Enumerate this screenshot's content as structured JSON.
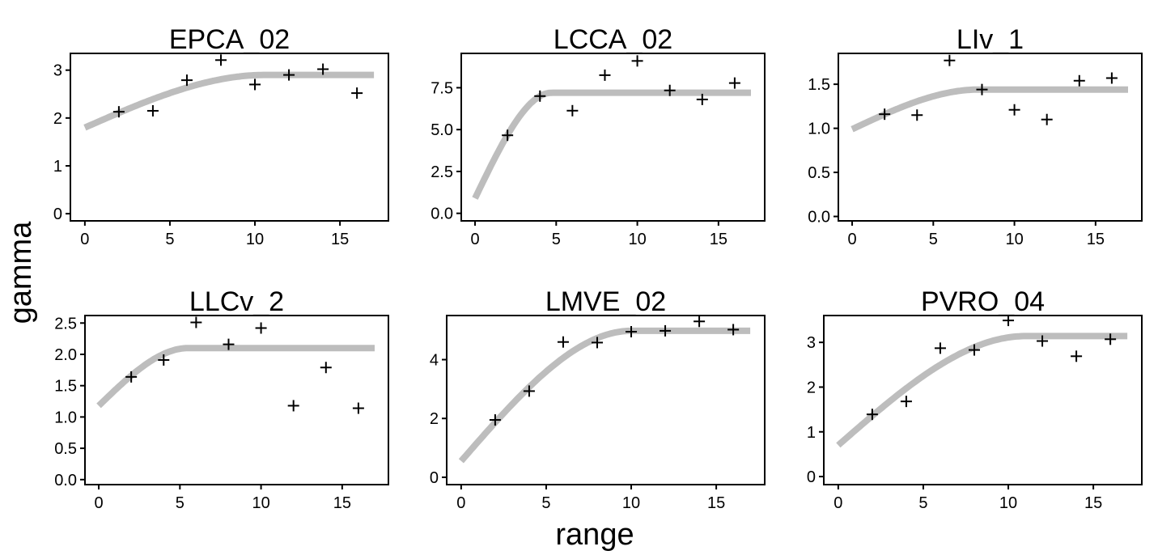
{
  "figure": {
    "xlabel": "range",
    "ylabel": "gamma",
    "colors": {
      "fit_curve": "#bdbdbd",
      "points": "#000000",
      "axes": "#000000",
      "background": "#ffffff"
    }
  },
  "chart_data": [
    {
      "type": "scatter",
      "title": "EPCA_02",
      "xlim": [
        -0.85,
        17.85
      ],
      "ylim": [
        -0.15,
        3.35
      ],
      "x_ticks": [
        0,
        5,
        10,
        15
      ],
      "x_tick_labels": [
        "0",
        "5",
        "10",
        "15"
      ],
      "y_ticks": [
        0,
        1,
        2,
        3
      ],
      "y_tick_labels": [
        "0",
        "1",
        "2",
        "3"
      ],
      "points": {
        "x": [
          2,
          4,
          6,
          8,
          10,
          12,
          14,
          16
        ],
        "y": [
          2.13,
          2.15,
          2.79,
          3.21,
          2.7,
          2.9,
          3.02,
          2.52
        ]
      },
      "fit": {
        "model": "spherical",
        "nugget": 1.8,
        "sill": 2.9,
        "range": 10.6,
        "xmax": 17
      }
    },
    {
      "type": "scatter",
      "title": "LCCA_02",
      "xlim": [
        -0.85,
        17.85
      ],
      "ylim": [
        -0.45,
        9.55
      ],
      "x_ticks": [
        0,
        5,
        10,
        15
      ],
      "x_tick_labels": [
        "0",
        "5",
        "10",
        "15"
      ],
      "y_ticks": [
        0,
        2.5,
        5,
        7.5
      ],
      "y_tick_labels": [
        "0.0",
        "2.5",
        "5.0",
        "7.5"
      ],
      "points": {
        "x": [
          2,
          4,
          6,
          8,
          10,
          12,
          14,
          16
        ],
        "y": [
          4.66,
          7.0,
          6.13,
          8.25,
          9.1,
          7.34,
          6.8,
          7.78
        ]
      },
      "fit": {
        "model": "spherical",
        "nugget": 0.9,
        "sill": 7.2,
        "range": 4.7,
        "xmax": 17
      }
    },
    {
      "type": "scatter",
      "title": "LIv_1",
      "xlim": [
        -0.85,
        17.85
      ],
      "ylim": [
        -0.05,
        1.85
      ],
      "x_ticks": [
        0,
        5,
        10,
        15
      ],
      "x_tick_labels": [
        "0",
        "5",
        "10",
        "15"
      ],
      "y_ticks": [
        0,
        0.5,
        1,
        1.5
      ],
      "y_tick_labels": [
        "0.0",
        "0.5",
        "1.0",
        "1.5"
      ],
      "points": {
        "x": [
          2,
          4,
          6,
          8,
          10,
          12,
          14,
          16
        ],
        "y": [
          1.16,
          1.15,
          1.77,
          1.44,
          1.21,
          1.1,
          1.54,
          1.57
        ]
      },
      "fit": {
        "model": "spherical",
        "nugget": 0.99,
        "sill": 1.44,
        "range": 7.8,
        "xmax": 17
      }
    },
    {
      "type": "scatter",
      "title": "LLCv_2",
      "xlim": [
        -0.85,
        17.85
      ],
      "ylim": [
        -0.08,
        2.62
      ],
      "x_ticks": [
        0,
        5,
        10,
        15
      ],
      "x_tick_labels": [
        "0",
        "5",
        "10",
        "15"
      ],
      "y_ticks": [
        0,
        0.5,
        1,
        1.5,
        2,
        2.5
      ],
      "y_tick_labels": [
        "0.0",
        "0.5",
        "1.0",
        "1.5",
        "2.0",
        "2.5"
      ],
      "points": {
        "x": [
          2,
          4,
          6,
          8,
          10,
          12,
          14,
          16
        ],
        "y": [
          1.64,
          1.91,
          2.51,
          2.16,
          2.42,
          1.18,
          1.79,
          1.14
        ]
      },
      "fit": {
        "model": "spherical",
        "nugget": 1.18,
        "sill": 2.1,
        "range": 5.5,
        "xmax": 17
      }
    },
    {
      "type": "scatter",
      "title": "LMVE_02",
      "xlim": [
        -0.85,
        17.85
      ],
      "ylim": [
        -0.25,
        5.5
      ],
      "x_ticks": [
        0,
        5,
        10,
        15
      ],
      "x_tick_labels": [
        "0",
        "5",
        "10",
        "15"
      ],
      "y_ticks": [
        0,
        2,
        4
      ],
      "y_tick_labels": [
        "0",
        "2",
        "4"
      ],
      "points": {
        "x": [
          2,
          4,
          6,
          8,
          10,
          12,
          14,
          16
        ],
        "y": [
          1.95,
          2.93,
          4.6,
          4.58,
          4.95,
          4.98,
          5.3,
          5.02
        ]
      },
      "fit": {
        "model": "spherical",
        "nugget": 0.55,
        "sill": 4.98,
        "range": 10.0,
        "xmax": 17
      }
    },
    {
      "type": "scatter",
      "title": "PVRO_04",
      "xlim": [
        -0.85,
        17.85
      ],
      "ylim": [
        -0.18,
        3.6
      ],
      "x_ticks": [
        0,
        5,
        10,
        15
      ],
      "x_tick_labels": [
        "0",
        "5",
        "10",
        "15"
      ],
      "y_ticks": [
        0,
        1,
        2,
        3
      ],
      "y_tick_labels": [
        "0",
        "1",
        "2",
        "3"
      ],
      "points": {
        "x": [
          2,
          4,
          6,
          8,
          10,
          12,
          14,
          16
        ],
        "y": [
          1.39,
          1.68,
          2.87,
          2.83,
          3.49,
          3.03,
          2.69,
          3.07
        ]
      },
      "fit": {
        "model": "spherical",
        "nugget": 0.7,
        "sill": 3.14,
        "range": 11.0,
        "xmax": 17
      }
    }
  ]
}
